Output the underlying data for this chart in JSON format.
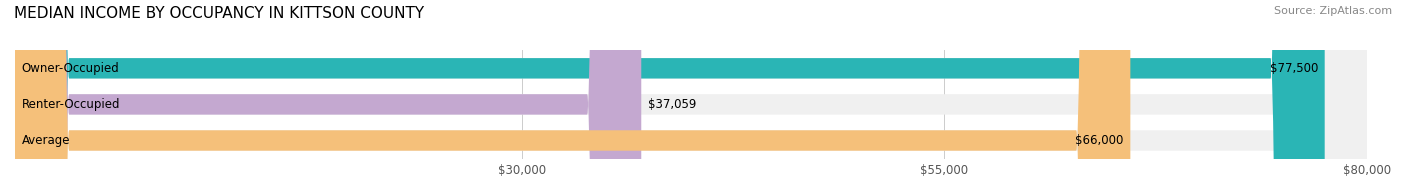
{
  "title": "MEDIAN INCOME BY OCCUPANCY IN KITTSON COUNTY",
  "source": "Source: ZipAtlas.com",
  "categories": [
    "Owner-Occupied",
    "Renter-Occupied",
    "Average"
  ],
  "values": [
    77500,
    37059,
    66000
  ],
  "bar_colors": [
    "#2ab5b5",
    "#c4a8d0",
    "#f5c07a"
  ],
  "bar_bg_color": "#f0f0f0",
  "label_color": "#555555",
  "value_labels": [
    "$77,500",
    "$37,059",
    "$66,000"
  ],
  "xlim": [
    0,
    80000
  ],
  "xticks": [
    30000,
    55000,
    80000
  ],
  "xtick_labels": [
    "$30,000",
    "$55,000",
    "$80,000"
  ],
  "title_fontsize": 11,
  "source_fontsize": 8,
  "bar_label_fontsize": 8.5,
  "tick_fontsize": 8.5,
  "figsize": [
    14.06,
    1.96
  ],
  "dpi": 100
}
